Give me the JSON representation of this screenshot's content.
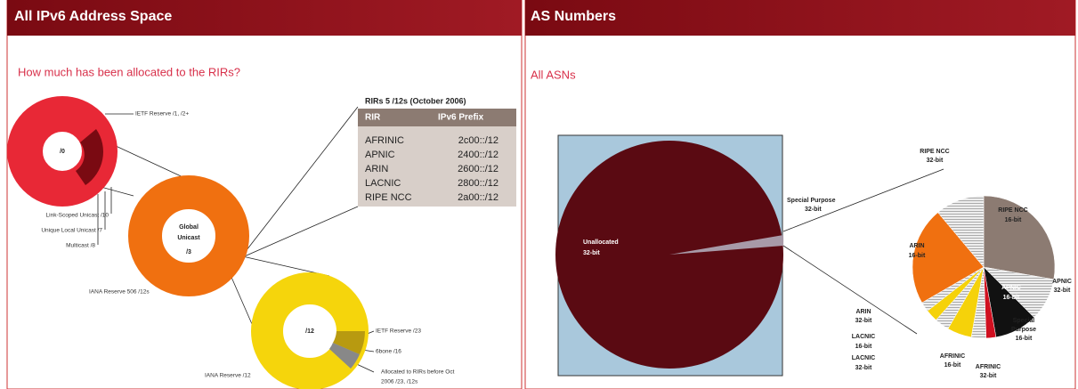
{
  "left": {
    "title": "All IPv6 Address Space",
    "subtitle": "How much has been allocated to the RIRs?",
    "donut_0": {
      "center": "/0",
      "labels": [
        "IETF Reserve /1, /2+",
        "Link-Scoped Unicast /10",
        "Unique Local Unicast /7",
        "Multicast /8"
      ]
    },
    "donut_3": {
      "center": [
        "Global",
        "Unicast",
        "/3"
      ],
      "labels": [
        "IANA Reserve 506 /12s"
      ]
    },
    "donut_12": {
      "center": "/12",
      "labels": [
        "IETF Reserve /23",
        "6bone /16",
        "Allocated to RIRs before Oct",
        "2006   /23, /12s",
        "IANA Reserve /12"
      ]
    },
    "table": {
      "title": "RIRs 5 /12s (October 2006)",
      "headers": [
        "RIR",
        "IPv6 Prefix"
      ],
      "rows": [
        [
          "AFRINIC",
          "2c00::/12"
        ],
        [
          "APNIC",
          "2400::/12"
        ],
        [
          "ARIN",
          "2600::/12"
        ],
        [
          "LACNIC",
          "2800::/12"
        ],
        [
          "RIPE NCC",
          "2a00::/12"
        ]
      ]
    }
  },
  "right": {
    "title": "AS Numbers",
    "subtitle": "All ASNs",
    "big_pie": {
      "labels": [
        "Unallocated",
        "32-bit",
        "Special Purpose",
        "32-bit"
      ]
    },
    "small_pie": {
      "labels": [
        "RIPE NCC",
        "32-bit",
        "RIPE NCC",
        "16-bit",
        "ARIN",
        "16-bit",
        "APNIC",
        "32-bit",
        "APNIC",
        "16-bit",
        "ARIN",
        "32-bit",
        "LACNIC",
        "16-bit",
        "LACNIC",
        "32-bit",
        "AFRINIC",
        "16-bit",
        "AFRINIC",
        "32-bit",
        "Special",
        "Purpose",
        "16-bit"
      ]
    }
  }
}
